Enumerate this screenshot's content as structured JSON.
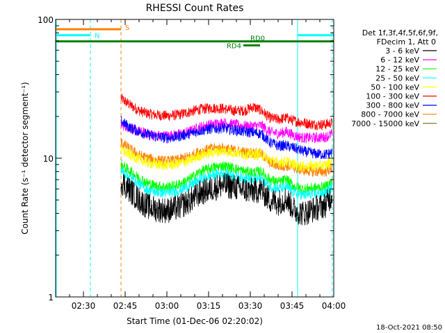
{
  "chart_data": {
    "type": "line",
    "title": "RHESSI Count Rates",
    "xlabel": "Start Time (01-Dec-06 02:20:02)",
    "ylabel": "Count Rate (s⁻¹ detector segment⁻¹)",
    "yscale": "log",
    "ylim": [
      1,
      100
    ],
    "xlim_minutes_of_day": [
      140,
      240
    ],
    "x_ticks": [
      {
        "label": "02:30",
        "min": 150
      },
      {
        "label": "02:45",
        "min": 165
      },
      {
        "label": "03:00",
        "min": 180
      },
      {
        "label": "03:15",
        "min": 195
      },
      {
        "label": "03:30",
        "min": 210
      },
      {
        "label": "03:45",
        "min": 225
      },
      {
        "label": "04:00",
        "min": 240
      }
    ],
    "y_ticks": [
      {
        "label": "1",
        "value": 1
      },
      {
        "label": "10",
        "value": 10
      },
      {
        "label": "100",
        "value": 100
      }
    ],
    "legend_header": [
      "Det 1f,3f,4f,5f,6f,9f,",
      "FDecim 1, Att 0"
    ],
    "legend_position": "right",
    "x_sample_minutes": [
      163.5,
      167,
      170,
      173,
      176,
      180,
      184,
      188,
      192,
      196,
      200,
      204,
      208,
      211,
      214,
      217,
      220,
      223,
      226,
      229,
      233,
      237,
      239.5
    ],
    "series": [
      {
        "name": "3 - 6 keV",
        "color": "#000000",
        "values": [
          6.8,
          5.8,
          5.0,
          4.5,
          4.3,
          4.2,
          4.4,
          4.9,
          5.6,
          6.0,
          6.4,
          6.2,
          5.9,
          5.8,
          5.9,
          5.0,
          4.8,
          5.1,
          4.2,
          4.0,
          4.3,
          4.6,
          5.5
        ]
      },
      {
        "name": "6 - 12 keV",
        "color": "#ff00ff",
        "values": [
          17.5,
          16.5,
          15.5,
          15.0,
          14.5,
          14.5,
          14.8,
          15.5,
          16.8,
          17.5,
          18.0,
          17.5,
          17.0,
          17.0,
          17.2,
          15.5,
          15.0,
          15.5,
          14.5,
          14.0,
          14.0,
          14.2,
          15.0
        ]
      },
      {
        "name": "12 - 25 keV",
        "color": "#00ff00",
        "values": [
          9.0,
          8.0,
          7.2,
          6.6,
          6.3,
          6.2,
          6.4,
          7.0,
          8.0,
          8.5,
          8.8,
          8.5,
          8.0,
          7.9,
          8.0,
          7.0,
          6.7,
          7.0,
          6.2,
          6.0,
          6.1,
          6.2,
          6.8
        ]
      },
      {
        "name": "25 - 50 keV",
        "color": "#00ffff",
        "values": [
          8.2,
          7.2,
          6.5,
          5.9,
          5.7,
          5.6,
          5.8,
          6.3,
          7.0,
          7.5,
          7.8,
          7.5,
          7.2,
          7.0,
          7.1,
          6.3,
          6.0,
          6.2,
          5.6,
          5.4,
          5.5,
          5.6,
          6.2
        ]
      },
      {
        "name": "50 - 100 keV",
        "color": "#ffff00",
        "values": [
          11.5,
          10.5,
          9.8,
          9.3,
          9.0,
          8.9,
          9.1,
          9.6,
          10.5,
          11.0,
          11.3,
          11.0,
          10.7,
          10.6,
          10.7,
          9.7,
          9.3,
          9.5,
          8.9,
          8.7,
          8.8,
          8.9,
          9.5
        ]
      },
      {
        "name": "100 - 300 keV",
        "color": "#ff0000",
        "values": [
          27.0,
          24.0,
          22.0,
          21.0,
          20.5,
          20.2,
          20.5,
          21.5,
          22.5,
          23.0,
          22.8,
          22.0,
          22.0,
          23.5,
          22.0,
          19.5,
          19.0,
          19.5,
          18.5,
          18.0,
          17.5,
          17.5,
          18.0
        ]
      },
      {
        "name": "300 - 800 keV",
        "color": "#0000ff",
        "values": [
          18.5,
          16.5,
          15.5,
          14.8,
          14.3,
          14.0,
          14.3,
          15.0,
          15.8,
          16.3,
          16.5,
          16.0,
          15.5,
          15.3,
          15.0,
          13.0,
          12.3,
          12.3,
          11.8,
          11.2,
          10.8,
          10.6,
          11.0
        ]
      },
      {
        "name": "800 - 7000 keV",
        "color": "#ff8000",
        "values": [
          13.0,
          11.5,
          10.5,
          10.0,
          9.7,
          9.5,
          9.7,
          10.3,
          11.2,
          11.7,
          11.8,
          11.4,
          11.0,
          10.9,
          10.8,
          9.3,
          8.8,
          8.8,
          8.5,
          8.2,
          8.0,
          8.0,
          8.5
        ]
      },
      {
        "name": "7000 - 15000 keV",
        "color": "#7f5f1f",
        "values": []
      }
    ],
    "annotations": {
      "S": {
        "label": "S",
        "color": "#ff8000",
        "bar_minutes": [
          140,
          163.5
        ],
        "bar_value": 85,
        "marker_minutes": 163.5
      },
      "N": {
        "label": "N",
        "color": "#00ffff",
        "bars_minutes": [
          [
            140,
            152.5
          ],
          [
            227,
            240
          ]
        ],
        "bar_value": 77,
        "markers_minutes": [
          152.5,
          239.5
        ]
      },
      "RD0": {
        "label": "RD0",
        "color": "#008000",
        "bar_minutes": [
          140,
          240
        ],
        "bar_value": 69.5
      },
      "RD4": {
        "label": "RD4",
        "color": "#008000",
        "bar_minutes": [
          207.5,
          213.5
        ],
        "bar_value": 65
      },
      "saa_edges_minutes": [
        140,
        227
      ]
    }
  },
  "footer_date": "18-Oct-2021 08:50"
}
